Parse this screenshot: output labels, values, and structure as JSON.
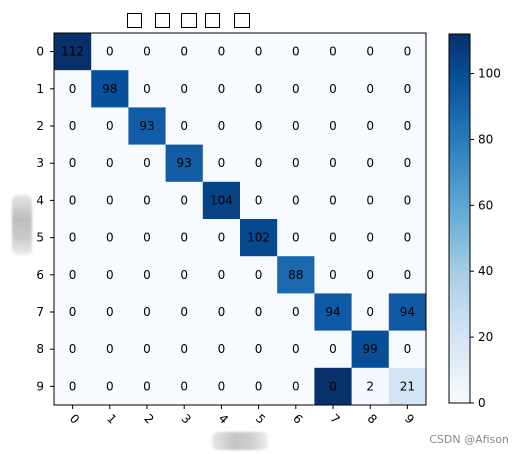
{
  "chart_data": {
    "type": "heatmap",
    "title": "",
    "xlabel": "",
    "ylabel": "",
    "x_ticks": [
      "0",
      "1",
      "2",
      "3",
      "4",
      "5",
      "6",
      "7",
      "8",
      "9"
    ],
    "y_ticks": [
      "0",
      "1",
      "2",
      "3",
      "4",
      "5",
      "6",
      "7",
      "8",
      "9"
    ],
    "values": [
      [
        112,
        0,
        0,
        0,
        0,
        0,
        0,
        0,
        0,
        0
      ],
      [
        0,
        98,
        0,
        0,
        0,
        0,
        0,
        0,
        0,
        0
      ],
      [
        0,
        0,
        93,
        0,
        0,
        0,
        0,
        0,
        0,
        0
      ],
      [
        0,
        0,
        0,
        93,
        0,
        0,
        0,
        0,
        0,
        0
      ],
      [
        0,
        0,
        0,
        0,
        104,
        0,
        0,
        0,
        0,
        0
      ],
      [
        0,
        0,
        0,
        0,
        0,
        102,
        0,
        0,
        0,
        0
      ],
      [
        0,
        0,
        0,
        0,
        0,
        0,
        88,
        0,
        0,
        0
      ],
      [
        0,
        0,
        0,
        0,
        0,
        0,
        0,
        94,
        0,
        94
      ],
      [
        0,
        0,
        0,
        0,
        0,
        0,
        0,
        0,
        99,
        0
      ],
      [
        0,
        0,
        0,
        0,
        0,
        0,
        0,
        0,
        2,
        21
      ]
    ],
    "cell_colors_override": {
      "9-7": "#08306b"
    },
    "colormap": "Blues",
    "vmin": 0,
    "vmax": 112,
    "colorbar_ticks": [
      0,
      20,
      40,
      60,
      80,
      100
    ],
    "grid": false,
    "legend": "colorbar-right"
  },
  "watermark": "CSDN @Afison"
}
